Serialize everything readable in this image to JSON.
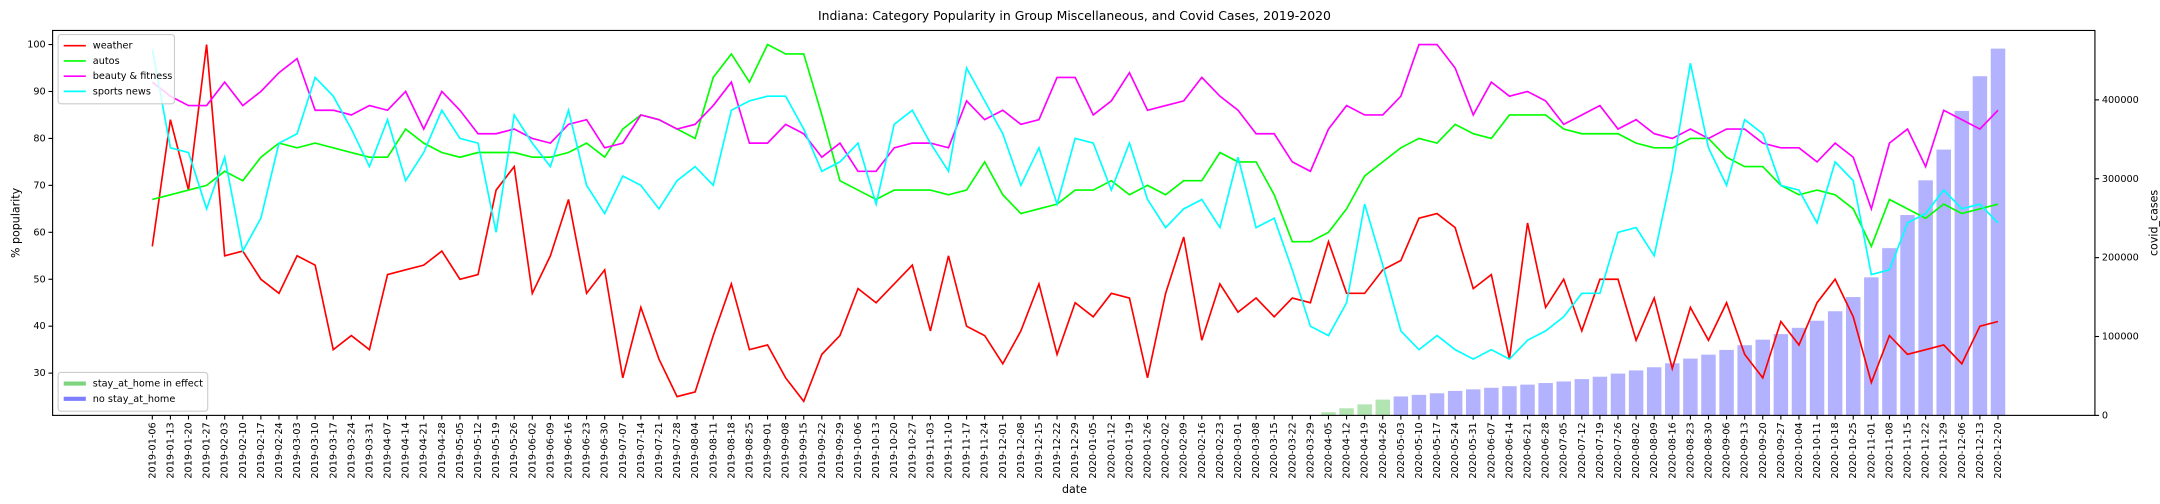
{
  "chart_data": {
    "type": "line",
    "title": "Indiana: Category Popularity in Group Miscellaneous, and Covid Cases, 2019-2020",
    "xlabel": "date",
    "ylabel": "% popularity",
    "y2label": "covid_cases",
    "ylim": [
      21,
      103
    ],
    "yticks": [
      30,
      40,
      50,
      60,
      70,
      80,
      90,
      100
    ],
    "y2lim": [
      0,
      488000
    ],
    "y2ticks": [
      0,
      100000,
      200000,
      300000,
      400000
    ],
    "legend": "upper left",
    "legend2": "lower left",
    "categories": [
      "2019-01-06",
      "2019-01-13",
      "2019-01-20",
      "2019-01-27",
      "2019-02-03",
      "2019-02-10",
      "2019-02-17",
      "2019-02-24",
      "2019-03-03",
      "2019-03-10",
      "2019-03-17",
      "2019-03-24",
      "2019-03-31",
      "2019-04-07",
      "2019-04-14",
      "2019-04-21",
      "2019-04-28",
      "2019-05-05",
      "2019-05-12",
      "2019-05-19",
      "2019-05-26",
      "2019-06-02",
      "2019-06-09",
      "2019-06-16",
      "2019-06-23",
      "2019-06-30",
      "2019-07-07",
      "2019-07-14",
      "2019-07-21",
      "2019-07-28",
      "2019-08-04",
      "2019-08-11",
      "2019-08-18",
      "2019-08-25",
      "2019-09-01",
      "2019-09-08",
      "2019-09-15",
      "2019-09-22",
      "2019-09-29",
      "2019-10-06",
      "2019-10-13",
      "2019-10-20",
      "2019-10-27",
      "2019-11-03",
      "2019-11-10",
      "2019-11-17",
      "2019-11-24",
      "2019-12-01",
      "2019-12-08",
      "2019-12-15",
      "2019-12-22",
      "2019-12-29",
      "2020-01-05",
      "2020-01-12",
      "2020-01-19",
      "2020-01-26",
      "2020-02-02",
      "2020-02-09",
      "2020-02-16",
      "2020-02-23",
      "2020-03-01",
      "2020-03-08",
      "2020-03-15",
      "2020-03-22",
      "2020-03-29",
      "2020-04-05",
      "2020-04-12",
      "2020-04-19",
      "2020-04-26",
      "2020-05-03",
      "2020-05-10",
      "2020-05-17",
      "2020-05-24",
      "2020-05-31",
      "2020-06-07",
      "2020-06-14",
      "2020-06-21",
      "2020-06-28",
      "2020-07-05",
      "2020-07-12",
      "2020-07-19",
      "2020-07-26",
      "2020-08-02",
      "2020-08-09",
      "2020-08-16",
      "2020-08-23",
      "2020-08-30",
      "2020-09-06",
      "2020-09-13",
      "2020-09-20",
      "2020-09-27",
      "2020-10-04",
      "2020-10-11",
      "2020-10-18",
      "2020-10-25",
      "2020-11-01",
      "2020-11-08",
      "2020-11-15",
      "2020-11-22",
      "2020-11-29",
      "2020-12-06",
      "2020-12-13",
      "2020-12-20"
    ],
    "series": [
      {
        "name": "weather",
        "color": "#ff0000",
        "type": "line",
        "values": [
          57,
          84,
          69,
          100,
          55,
          56,
          50,
          47,
          55,
          53,
          35,
          38,
          35,
          51,
          52,
          53,
          56,
          50,
          51,
          69,
          74,
          47,
          55,
          67,
          47,
          52,
          29,
          44,
          33,
          25,
          26,
          38,
          49,
          35,
          36,
          29,
          24,
          34,
          38,
          48,
          45,
          49,
          53,
          39,
          55,
          40,
          38,
          32,
          39,
          49,
          34,
          45,
          42,
          47,
          46,
          29,
          47,
          59,
          37,
          49,
          43,
          46,
          42,
          46,
          45,
          58,
          47,
          47,
          52,
          54,
          63,
          64,
          61,
          48,
          51,
          33,
          62,
          44,
          50,
          39,
          50,
          50,
          37,
          46,
          31,
          44,
          37,
          45,
          34,
          29,
          41,
          36,
          45,
          50,
          42,
          28,
          38,
          34,
          35,
          36,
          32,
          40,
          41
        ]
      },
      {
        "name": "autos",
        "color": "#00ff00",
        "type": "line",
        "values": [
          67,
          68,
          69,
          70,
          73,
          71,
          76,
          79,
          78,
          79,
          78,
          77,
          76,
          76,
          82,
          79,
          77,
          76,
          77,
          77,
          77,
          76,
          76,
          77,
          79,
          76,
          82,
          85,
          84,
          82,
          80,
          93,
          98,
          92,
          100,
          98,
          98,
          85,
          71,
          69,
          67,
          69,
          69,
          69,
          68,
          69,
          75,
          68,
          64,
          65,
          66,
          69,
          69,
          71,
          68,
          70,
          68,
          71,
          71,
          77,
          75,
          75,
          68,
          58,
          58,
          60,
          65,
          72,
          75,
          78,
          80,
          79,
          83,
          81,
          80,
          85,
          85,
          85,
          82,
          81,
          81,
          81,
          79,
          78,
          78,
          80,
          80,
          76,
          74,
          74,
          70,
          68,
          69,
          68,
          65,
          57,
          67,
          65,
          63,
          66,
          64,
          65,
          66
        ]
      },
      {
        "name": "beauty & fitness",
        "color": "#ff00ff",
        "type": "line",
        "values": [
          92,
          89,
          87,
          87,
          92,
          87,
          90,
          94,
          97,
          86,
          86,
          85,
          87,
          86,
          90,
          82,
          90,
          86,
          81,
          81,
          82,
          80,
          79,
          83,
          84,
          78,
          79,
          85,
          84,
          82,
          83,
          87,
          92,
          79,
          79,
          83,
          81,
          76,
          79,
          73,
          73,
          78,
          79,
          79,
          78,
          88,
          84,
          86,
          83,
          84,
          93,
          93,
          85,
          88,
          94,
          86,
          87,
          88,
          93,
          89,
          86,
          81,
          81,
          75,
          73,
          82,
          87,
          85,
          85,
          89,
          100,
          100,
          95,
          85,
          92,
          89,
          90,
          88,
          83,
          85,
          87,
          82,
          84,
          81,
          80,
          82,
          80,
          82,
          82,
          79,
          78,
          78,
          75,
          79,
          76,
          65,
          79,
          82,
          74,
          86,
          84,
          82,
          86
        ]
      },
      {
        "name": "sports news",
        "color": "#00ffff",
        "type": "line",
        "values": [
          99,
          78,
          77,
          65,
          76,
          56,
          63,
          79,
          81,
          93,
          89,
          82,
          74,
          84,
          71,
          77,
          86,
          80,
          79,
          60,
          85,
          79,
          74,
          86,
          70,
          64,
          72,
          70,
          65,
          71,
          74,
          70,
          86,
          88,
          89,
          89,
          82,
          73,
          75,
          79,
          66,
          83,
          86,
          79,
          73,
          95,
          88,
          81,
          70,
          78,
          66,
          80,
          79,
          69,
          79,
          67,
          61,
          65,
          67,
          61,
          76,
          61,
          63,
          52,
          40,
          38,
          45,
          66,
          53,
          39,
          35,
          38,
          35,
          33,
          35,
          33,
          37,
          39,
          42,
          47,
          47,
          60,
          61,
          55,
          73,
          96,
          78,
          70,
          84,
          81,
          70,
          69,
          62,
          75,
          71,
          51,
          52,
          62,
          64,
          69,
          65,
          66,
          62
        ]
      },
      {
        "name": "stay_at_home in effect",
        "color": "#66cc66",
        "type": "bar",
        "axis": "y2",
        "values": [
          null,
          null,
          null,
          null,
          null,
          null,
          null,
          null,
          null,
          null,
          null,
          null,
          null,
          null,
          null,
          null,
          null,
          null,
          null,
          null,
          null,
          null,
          null,
          null,
          null,
          null,
          null,
          null,
          null,
          null,
          null,
          null,
          null,
          null,
          null,
          null,
          null,
          null,
          null,
          null,
          null,
          null,
          null,
          null,
          null,
          null,
          null,
          null,
          null,
          null,
          null,
          null,
          null,
          null,
          null,
          null,
          null,
          null,
          null,
          null,
          null,
          null,
          null,
          null,
          null,
          4000,
          9000,
          14000,
          20000,
          null,
          null,
          null,
          null,
          null,
          null,
          null,
          null,
          null,
          null,
          null,
          null,
          null,
          null,
          null,
          null,
          null,
          null,
          null,
          null,
          null,
          null,
          null,
          null,
          null,
          null,
          null,
          null,
          null,
          null,
          null,
          null,
          null,
          null
        ]
      },
      {
        "name": "no stay_at_home",
        "color": "#6666ff",
        "type": "bar",
        "axis": "y2",
        "values": [
          null,
          null,
          null,
          null,
          null,
          null,
          null,
          null,
          null,
          null,
          null,
          null,
          null,
          null,
          null,
          null,
          null,
          null,
          null,
          null,
          null,
          null,
          null,
          null,
          null,
          null,
          null,
          null,
          null,
          null,
          null,
          null,
          null,
          null,
          null,
          null,
          null,
          null,
          null,
          null,
          null,
          null,
          null,
          null,
          null,
          null,
          null,
          null,
          null,
          null,
          null,
          null,
          null,
          null,
          null,
          null,
          null,
          null,
          null,
          null,
          null,
          null,
          null,
          null,
          null,
          null,
          null,
          null,
          null,
          24000,
          26000,
          28000,
          31000,
          33000,
          35000,
          37000,
          39000,
          41000,
          43000,
          46000,
          49000,
          53000,
          57000,
          61000,
          66000,
          72000,
          77000,
          83000,
          89000,
          96000,
          103000,
          111000,
          120000,
          132000,
          150000,
          175000,
          212000,
          254000,
          298000,
          337000,
          386000,
          430000,
          465000
        ]
      }
    ]
  }
}
